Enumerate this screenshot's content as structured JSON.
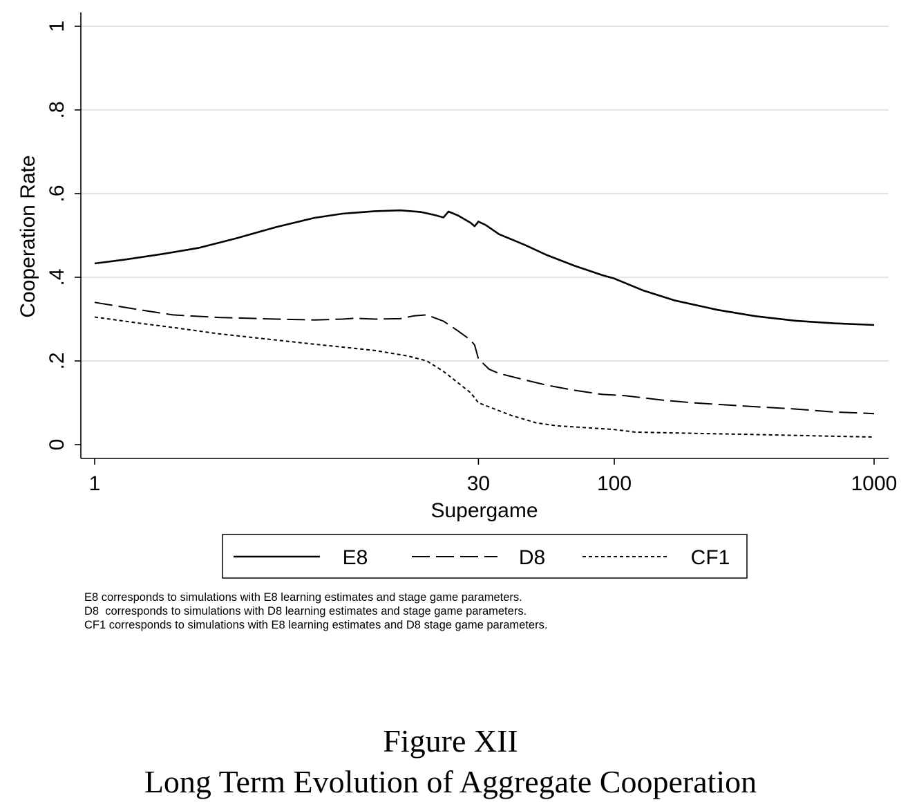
{
  "chart_data": {
    "type": "line",
    "x_scale": "log",
    "xlabel": "Supergame",
    "ylabel": "Cooperation Rate",
    "xlim": [
      1,
      1000
    ],
    "ylim": [
      0,
      1
    ],
    "x_ticks": [
      1,
      30,
      100,
      1000
    ],
    "x_tick_labels": [
      "1",
      "30",
      "100",
      "1000"
    ],
    "y_ticks": [
      0,
      0.2,
      0.4,
      0.6,
      0.8,
      1
    ],
    "y_tick_labels": [
      "0",
      ".2",
      ".4",
      ".6",
      ".8",
      "1"
    ],
    "grid": "horizontal",
    "legend_position": "bottom",
    "series": [
      {
        "name": "E8",
        "style": "solid",
        "points": [
          [
            1,
            0.433
          ],
          [
            1.3,
            0.442
          ],
          [
            1.8,
            0.455
          ],
          [
            2.5,
            0.47
          ],
          [
            3.5,
            0.493
          ],
          [
            5,
            0.52
          ],
          [
            7,
            0.542
          ],
          [
            9,
            0.552
          ],
          [
            12,
            0.558
          ],
          [
            15,
            0.56
          ],
          [
            18,
            0.556
          ],
          [
            20,
            0.55
          ],
          [
            22,
            0.543
          ],
          [
            23,
            0.557
          ],
          [
            25,
            0.548
          ],
          [
            28,
            0.53
          ],
          [
            29,
            0.522
          ],
          [
            30,
            0.533
          ],
          [
            32,
            0.525
          ],
          [
            36,
            0.503
          ],
          [
            45,
            0.478
          ],
          [
            55,
            0.453
          ],
          [
            70,
            0.428
          ],
          [
            90,
            0.405
          ],
          [
            100,
            0.397
          ],
          [
            130,
            0.368
          ],
          [
            170,
            0.345
          ],
          [
            250,
            0.322
          ],
          [
            350,
            0.307
          ],
          [
            500,
            0.296
          ],
          [
            700,
            0.29
          ],
          [
            1000,
            0.286
          ]
        ]
      },
      {
        "name": "D8",
        "style": "dashed",
        "points": [
          [
            1,
            0.34
          ],
          [
            1.5,
            0.322
          ],
          [
            2,
            0.31
          ],
          [
            3,
            0.304
          ],
          [
            5,
            0.3
          ],
          [
            7,
            0.298
          ],
          [
            9,
            0.3
          ],
          [
            10,
            0.302
          ],
          [
            12,
            0.3
          ],
          [
            15,
            0.301
          ],
          [
            17,
            0.308
          ],
          [
            19,
            0.31
          ],
          [
            22,
            0.295
          ],
          [
            25,
            0.272
          ],
          [
            28,
            0.25
          ],
          [
            29,
            0.238
          ],
          [
            30,
            0.205
          ],
          [
            33,
            0.18
          ],
          [
            36,
            0.17
          ],
          [
            45,
            0.155
          ],
          [
            55,
            0.142
          ],
          [
            70,
            0.13
          ],
          [
            90,
            0.12
          ],
          [
            110,
            0.117
          ],
          [
            150,
            0.107
          ],
          [
            200,
            0.1
          ],
          [
            300,
            0.093
          ],
          [
            500,
            0.085
          ],
          [
            700,
            0.078
          ],
          [
            1000,
            0.074
          ]
        ]
      },
      {
        "name": "CF1",
        "style": "dotted",
        "points": [
          [
            1,
            0.305
          ],
          [
            1.5,
            0.29
          ],
          [
            2,
            0.28
          ],
          [
            3,
            0.265
          ],
          [
            5,
            0.25
          ],
          [
            7,
            0.24
          ],
          [
            9,
            0.233
          ],
          [
            12,
            0.225
          ],
          [
            14,
            0.218
          ],
          [
            16,
            0.212
          ],
          [
            19,
            0.2
          ],
          [
            22,
            0.175
          ],
          [
            25,
            0.148
          ],
          [
            28,
            0.124
          ],
          [
            30,
            0.1
          ],
          [
            33,
            0.09
          ],
          [
            40,
            0.07
          ],
          [
            50,
            0.052
          ],
          [
            60,
            0.045
          ],
          [
            80,
            0.04
          ],
          [
            100,
            0.036
          ],
          [
            120,
            0.03
          ],
          [
            200,
            0.027
          ],
          [
            300,
            0.025
          ],
          [
            500,
            0.022
          ],
          [
            700,
            0.02
          ],
          [
            1000,
            0.018
          ]
        ]
      }
    ],
    "notes": [
      "E8 corresponds to simulations with E8 learning estimates and stage game parameters.",
      "D8  corresponds to simulations with D8 learning estimates and stage game parameters.",
      "CF1 corresponds to simulations with E8 learning estimates and D8 stage game parameters."
    ]
  },
  "caption": {
    "label": "Figure XII",
    "title": "Long Term Evolution of Aggregate Cooperation"
  }
}
